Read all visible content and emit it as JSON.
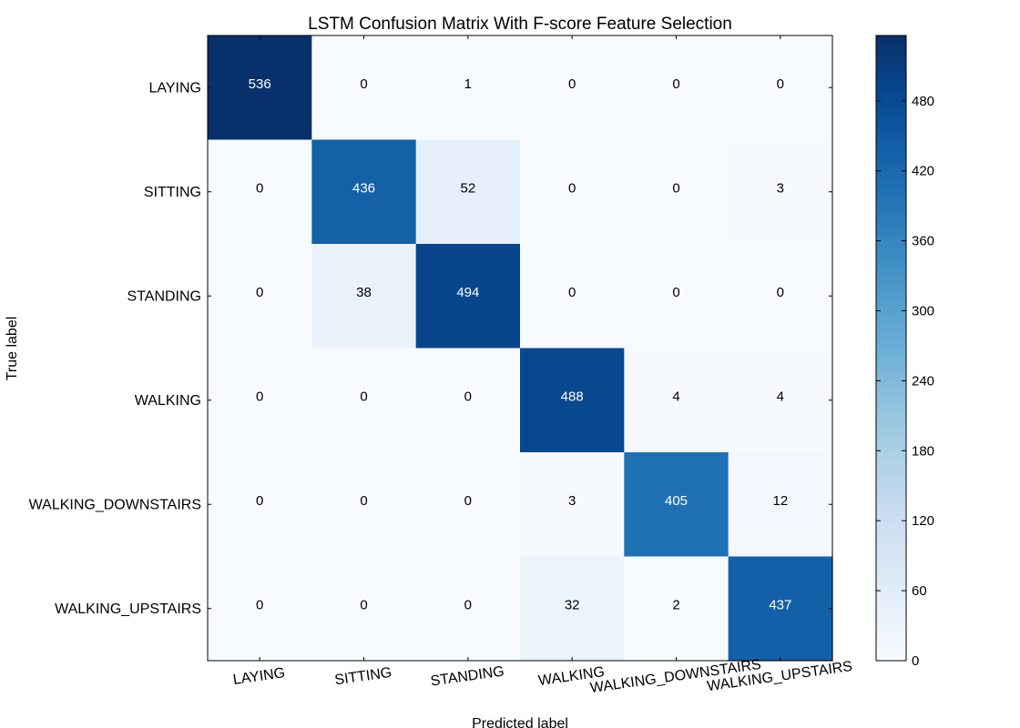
{
  "chart_data": {
    "type": "heatmap",
    "title": "LSTM Confusion Matrix With F-score Feature Selection",
    "xlabel": "Predicted label",
    "ylabel": "True label",
    "x_categories": [
      "LAYING",
      "SITTING",
      "STANDING",
      "WALKING",
      "WALKING_DOWNSTAIRS",
      "WALKING_UPSTAIRS"
    ],
    "y_categories": [
      "LAYING",
      "SITTING",
      "STANDING",
      "WALKING",
      "WALKING_DOWNSTAIRS",
      "WALKING_UPSTAIRS"
    ],
    "matrix": [
      [
        536,
        0,
        1,
        0,
        0,
        0
      ],
      [
        0,
        436,
        52,
        0,
        0,
        3
      ],
      [
        0,
        38,
        494,
        0,
        0,
        0
      ],
      [
        0,
        0,
        0,
        488,
        4,
        4
      ],
      [
        0,
        0,
        0,
        3,
        405,
        12
      ],
      [
        0,
        0,
        0,
        32,
        2,
        437
      ]
    ],
    "colormap": "Blues",
    "color_range": [
      0,
      536
    ],
    "colorbar_ticks": [
      0,
      60,
      120,
      180,
      240,
      300,
      360,
      420,
      480
    ],
    "x_tick_rotation_deg": -8
  }
}
